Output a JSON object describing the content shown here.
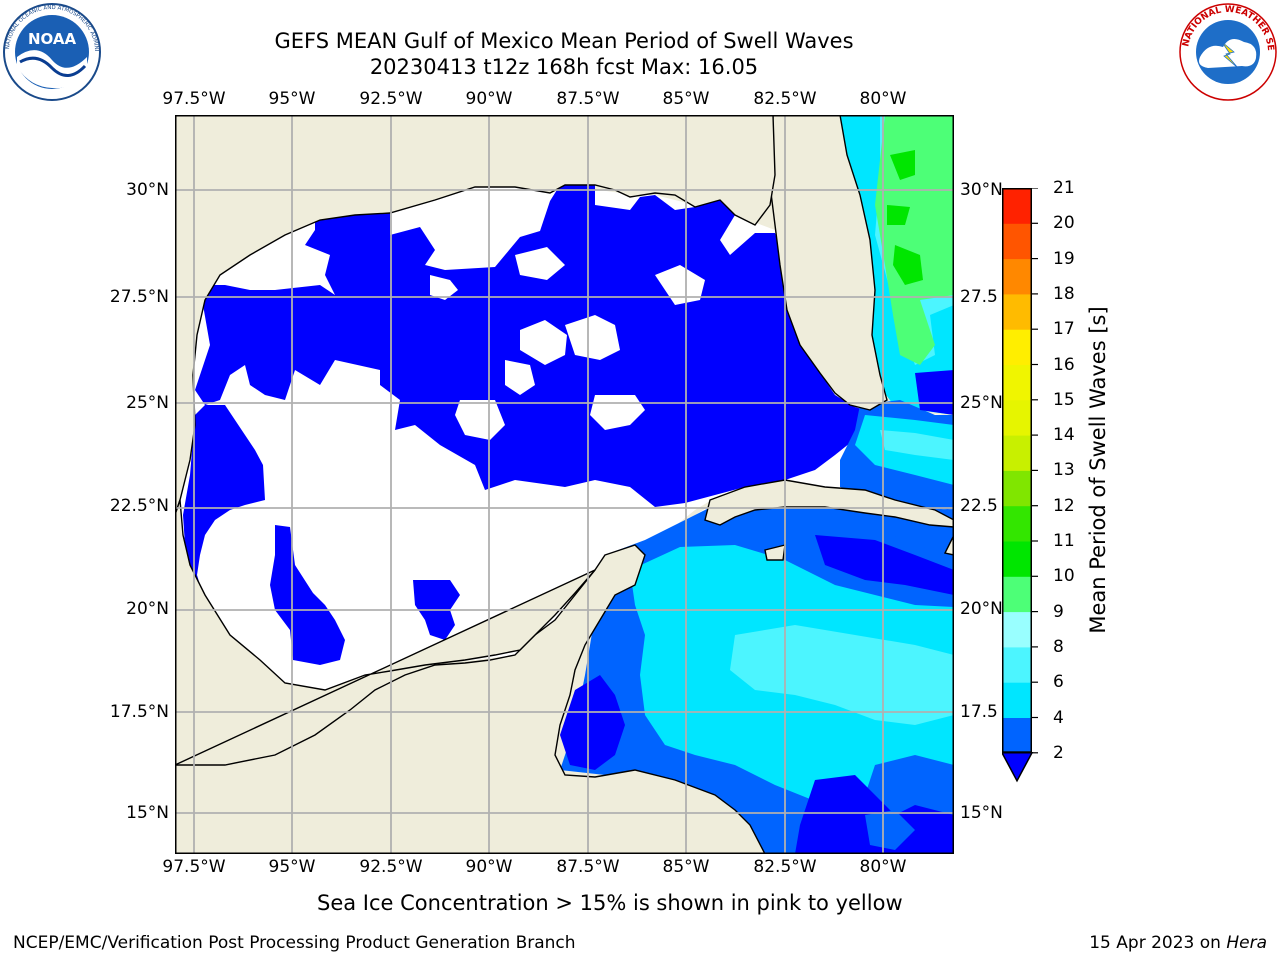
{
  "title": {
    "line1": "GEFS MEAN Gulf of Mexico Mean Period of Swell Waves",
    "line2": "20230413 t12z 168h fcst   Max: 16.05"
  },
  "logos": {
    "left": {
      "icon": "noaa-logo",
      "text": "NOAA",
      "ring_text": "NATIONAL OCEANIC AND ATMOSPHERIC ADMINISTRATION · U.S. DEPARTMENT OF COMMERCE"
    },
    "right": {
      "icon": "nws-logo",
      "ring_text": "NATIONAL WEATHER SERVICE"
    }
  },
  "map": {
    "lon_labels": [
      "97.5°W",
      "95°W",
      "92.5°W",
      "90°W",
      "87.5°W",
      "85°W",
      "82.5°W",
      "80°W"
    ],
    "lat_labels_left": [
      "30°N",
      "27.5°N",
      "25°N",
      "22.5°N",
      "20°N",
      "17.5°N",
      "15°N"
    ],
    "lat_labels_right": [
      "30°N",
      "27.5",
      "25°N",
      "22.5",
      "20°N",
      "17.5",
      "15°N"
    ],
    "land_color": "#efeddb",
    "grid_color": "#b0b0b0"
  },
  "colorbar": {
    "title": "Mean Period of Swell Waves [s]",
    "ticks": [
      "2",
      "4",
      "6",
      "8",
      "9",
      "10",
      "11",
      "12",
      "13",
      "14",
      "15",
      "16",
      "17",
      "18",
      "19",
      "20",
      "21"
    ],
    "colors": [
      "#0064ff",
      "#00e6ff",
      "#4cf5ff",
      "#99ffff",
      "#4dff77",
      "#00e600",
      "#33e600",
      "#80e600",
      "#c8f000",
      "#e6f500",
      "#f0f500",
      "#ffee00",
      "#ffbb00",
      "#ff8800",
      "#ff5500",
      "#ff2200"
    ],
    "under_color": "#0000ff"
  },
  "note": "Sea Ice Concentration > 15% is shown in pink to yellow",
  "footer": {
    "left": "NCEP/EMC/Verification Post Processing Product Generation Branch",
    "right_prefix": "15 Apr 2023 on ",
    "right_italic": "Hera"
  }
}
